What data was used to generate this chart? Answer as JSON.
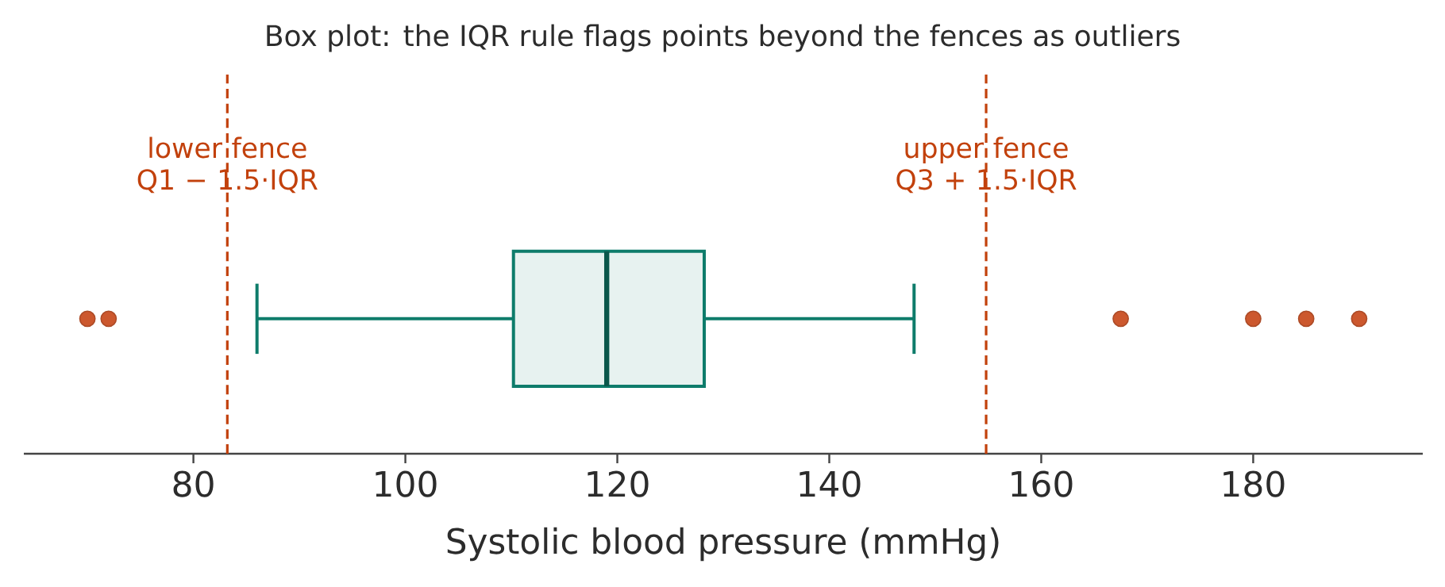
{
  "chart_data": {
    "type": "box",
    "title": "Box plot: the IQR rule flags points beyond the fences as outliers",
    "xlabel": "Systolic blood pressure (mmHg)",
    "orientation": "horizontal",
    "categories": [
      null
    ],
    "series": [
      {
        "color": "#0e7c6b",
        "boxes": [
          {
            "low": 86,
            "q1": 110.2,
            "median": 119,
            "q3": 128.2,
            "high": 148,
            "outliers": [
              70,
              72,
              167.5,
              180,
              185,
              190
            ]
          }
        ]
      }
    ],
    "xlim": [
      64,
      196
    ],
    "xticks": [
      80,
      100,
      120,
      140,
      160,
      180
    ],
    "ref_lines": [
      {
        "axis": "x",
        "value": 83.2,
        "label": "lower fence Q1 − 1.5·IQR",
        "color": "#c2410c",
        "line_style": "dashed"
      },
      {
        "axis": "x",
        "value": 154.8,
        "label": "upper fence Q3 + 1.5·IQR",
        "color": "#c2410c",
        "line_style": "dashed"
      }
    ],
    "grid": false
  }
}
